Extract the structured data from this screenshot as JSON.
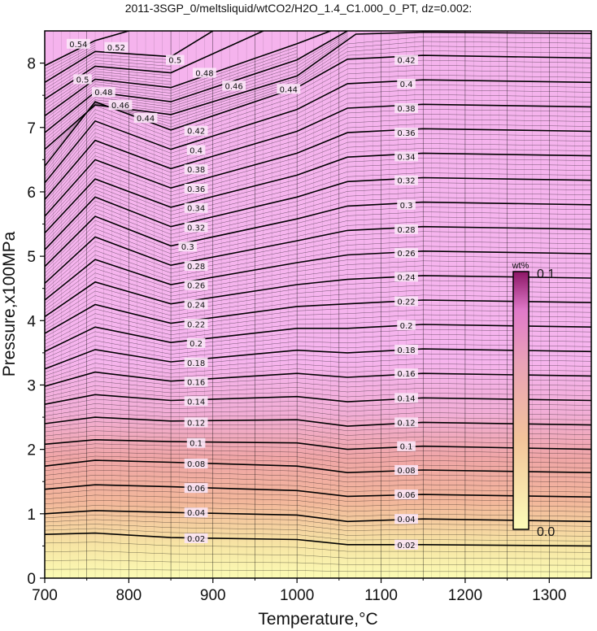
{
  "chart_data": {
    "type": "heatmap",
    "title": "2011-3SGP_0/meltsliquid/wtCO2/H2O_1.4_C1.000_0_PT, dz=0.002:",
    "xlabel": "Temperature,°C",
    "ylabel": "Pressure,x100MPa",
    "xlim": [
      700,
      1350
    ],
    "ylim": [
      0,
      8.5
    ],
    "xticks": [
      "700",
      "800",
      "900",
      "1000",
      "1100",
      "1200",
      "1300"
    ],
    "yticks": [
      "0",
      "1",
      "2",
      "3",
      "4",
      "5",
      "6",
      "7",
      "8"
    ],
    "grid": true,
    "colorbar": {
      "unit": "wt%",
      "min_label": "0.0",
      "max_label": "0.1",
      "min": 0.0,
      "max": 0.1,
      "placement": "right-inside"
    },
    "colors": {
      "low": "#fbfbb4",
      "mid": "#f2a39a",
      "high": "#f6b4ee",
      "top": "#8c1666"
    },
    "contour_levels": [
      "0.02",
      "0.04",
      "0.06",
      "0.08",
      "0.1",
      "0.12",
      "0.14",
      "0.16",
      "0.18",
      "0.2",
      "0.22",
      "0.24",
      "0.26",
      "0.28",
      "0.3",
      "0.32",
      "0.34",
      "0.36",
      "0.38",
      "0.4",
      "0.42",
      "0.44",
      "0.46",
      "0.48",
      "0.5",
      "0.52",
      "0.54"
    ],
    "contours": [
      {
        "level": 0.02,
        "labels": [
          [
            880,
            0.62
          ],
          [
            1130,
            0.52
          ]
        ],
        "points": [
          [
            700,
            0.68
          ],
          [
            760,
            0.7
          ],
          [
            850,
            0.63
          ],
          [
            1000,
            0.6
          ],
          [
            1060,
            0.52
          ],
          [
            1150,
            0.52
          ],
          [
            1350,
            0.5
          ]
        ]
      },
      {
        "level": 0.04,
        "labels": [
          [
            880,
            1.02
          ],
          [
            1130,
            0.92
          ]
        ],
        "points": [
          [
            700,
            1.0
          ],
          [
            760,
            1.05
          ],
          [
            850,
            1.02
          ],
          [
            1000,
            0.98
          ],
          [
            1060,
            0.88
          ],
          [
            1150,
            0.92
          ],
          [
            1350,
            0.88
          ]
        ]
      },
      {
        "level": 0.06,
        "labels": [
          [
            880,
            1.4
          ],
          [
            1130,
            1.3
          ]
        ],
        "points": [
          [
            700,
            1.38
          ],
          [
            760,
            1.45
          ],
          [
            850,
            1.42
          ],
          [
            1000,
            1.36
          ],
          [
            1060,
            1.27
          ],
          [
            1150,
            1.3
          ],
          [
            1350,
            1.26
          ]
        ]
      },
      {
        "level": 0.08,
        "labels": [
          [
            880,
            1.78
          ],
          [
            1130,
            1.68
          ]
        ],
        "points": [
          [
            700,
            1.74
          ],
          [
            760,
            1.83
          ],
          [
            850,
            1.8
          ],
          [
            1000,
            1.74
          ],
          [
            1060,
            1.64
          ],
          [
            1150,
            1.68
          ],
          [
            1350,
            1.64
          ]
        ]
      },
      {
        "level": 0.1,
        "labels": [
          [
            880,
            2.1
          ],
          [
            1130,
            2.05
          ]
        ],
        "points": [
          [
            700,
            2.08
          ],
          [
            760,
            2.15
          ],
          [
            850,
            2.12
          ],
          [
            1000,
            2.1
          ],
          [
            1060,
            2.0
          ],
          [
            1150,
            2.05
          ],
          [
            1350,
            2.0
          ]
        ]
      },
      {
        "level": 0.12,
        "labels": [
          [
            880,
            2.42
          ],
          [
            1130,
            2.42
          ]
        ],
        "points": [
          [
            700,
            2.4
          ],
          [
            760,
            2.5
          ],
          [
            850,
            2.44
          ],
          [
            1000,
            2.46
          ],
          [
            1060,
            2.36
          ],
          [
            1150,
            2.42
          ],
          [
            1350,
            2.38
          ]
        ]
      },
      {
        "level": 0.14,
        "labels": [
          [
            880,
            2.75
          ],
          [
            1130,
            2.8
          ]
        ],
        "points": [
          [
            700,
            2.7
          ],
          [
            760,
            2.85
          ],
          [
            850,
            2.76
          ],
          [
            1000,
            2.82
          ],
          [
            1060,
            2.74
          ],
          [
            1150,
            2.8
          ],
          [
            1350,
            2.76
          ]
        ]
      },
      {
        "level": 0.16,
        "labels": [
          [
            880,
            3.05
          ],
          [
            1130,
            3.18
          ]
        ],
        "points": [
          [
            700,
            2.98
          ],
          [
            760,
            3.2
          ],
          [
            850,
            3.06
          ],
          [
            1000,
            3.18
          ],
          [
            1060,
            3.12
          ],
          [
            1150,
            3.18
          ],
          [
            1350,
            3.14
          ]
        ]
      },
      {
        "level": 0.18,
        "labels": [
          [
            880,
            3.35
          ],
          [
            1130,
            3.55
          ]
        ],
        "points": [
          [
            700,
            3.25
          ],
          [
            760,
            3.55
          ],
          [
            850,
            3.36
          ],
          [
            1000,
            3.54
          ],
          [
            1060,
            3.5
          ],
          [
            1150,
            3.56
          ],
          [
            1350,
            3.52
          ]
        ]
      },
      {
        "level": 0.2,
        "labels": [
          [
            880,
            3.65
          ],
          [
            1130,
            3.93
          ]
        ],
        "points": [
          [
            700,
            3.52
          ],
          [
            760,
            3.9
          ],
          [
            850,
            3.66
          ],
          [
            1000,
            3.88
          ],
          [
            1060,
            3.88
          ],
          [
            1150,
            3.94
          ],
          [
            1350,
            3.9
          ]
        ]
      },
      {
        "level": 0.22,
        "labels": [
          [
            880,
            3.95
          ],
          [
            1130,
            4.3
          ]
        ],
        "points": [
          [
            700,
            3.8
          ],
          [
            760,
            4.25
          ],
          [
            850,
            3.96
          ],
          [
            1000,
            4.22
          ],
          [
            1060,
            4.26
          ],
          [
            1150,
            4.32
          ],
          [
            1350,
            4.28
          ]
        ]
      },
      {
        "level": 0.24,
        "labels": [
          [
            880,
            4.25
          ],
          [
            1130,
            4.68
          ]
        ],
        "points": [
          [
            700,
            4.06
          ],
          [
            760,
            4.6
          ],
          [
            850,
            4.26
          ],
          [
            1000,
            4.56
          ],
          [
            1060,
            4.64
          ],
          [
            1150,
            4.7
          ],
          [
            1350,
            4.66
          ]
        ]
      },
      {
        "level": 0.26,
        "labels": [
          [
            880,
            4.55
          ],
          [
            1130,
            5.05
          ]
        ],
        "points": [
          [
            700,
            4.32
          ],
          [
            760,
            4.95
          ],
          [
            850,
            4.56
          ],
          [
            1000,
            4.9
          ],
          [
            1060,
            5.02
          ],
          [
            1150,
            5.08
          ],
          [
            1350,
            5.04
          ]
        ]
      },
      {
        "level": 0.28,
        "labels": [
          [
            880,
            4.85
          ],
          [
            1130,
            5.42
          ]
        ],
        "points": [
          [
            700,
            4.58
          ],
          [
            760,
            5.3
          ],
          [
            850,
            4.86
          ],
          [
            1000,
            5.24
          ],
          [
            1060,
            5.4
          ],
          [
            1150,
            5.46
          ],
          [
            1350,
            5.42
          ]
        ]
      },
      {
        "level": 0.3,
        "labels": [
          [
            870,
            5.15
          ],
          [
            1130,
            5.8
          ]
        ],
        "points": [
          [
            700,
            4.84
          ],
          [
            760,
            5.62
          ],
          [
            850,
            5.16
          ],
          [
            1000,
            5.58
          ],
          [
            1060,
            5.78
          ],
          [
            1150,
            5.84
          ],
          [
            1350,
            5.8
          ]
        ]
      },
      {
        "level": 0.32,
        "labels": [
          [
            880,
            5.45
          ],
          [
            1130,
            6.18
          ]
        ],
        "points": [
          [
            700,
            5.1
          ],
          [
            760,
            5.92
          ],
          [
            850,
            5.46
          ],
          [
            1000,
            5.92
          ],
          [
            1060,
            6.16
          ],
          [
            1150,
            6.22
          ],
          [
            1350,
            6.18
          ]
        ]
      },
      {
        "level": 0.34,
        "labels": [
          [
            880,
            5.75
          ],
          [
            1130,
            6.55
          ]
        ],
        "points": [
          [
            700,
            5.36
          ],
          [
            760,
            6.2
          ],
          [
            850,
            5.76
          ],
          [
            1000,
            6.26
          ],
          [
            1060,
            6.54
          ],
          [
            1150,
            6.6
          ],
          [
            1350,
            6.56
          ]
        ]
      },
      {
        "level": 0.36,
        "labels": [
          [
            880,
            6.05
          ],
          [
            1130,
            6.92
          ]
        ],
        "points": [
          [
            700,
            5.62
          ],
          [
            760,
            6.5
          ],
          [
            850,
            6.06
          ],
          [
            1000,
            6.6
          ],
          [
            1060,
            6.92
          ],
          [
            1150,
            6.98
          ],
          [
            1350,
            6.94
          ]
        ]
      },
      {
        "level": 0.38,
        "labels": [
          [
            880,
            6.35
          ],
          [
            1130,
            7.3
          ]
        ],
        "points": [
          [
            700,
            5.88
          ],
          [
            760,
            6.8
          ],
          [
            850,
            6.36
          ],
          [
            1000,
            6.94
          ],
          [
            1060,
            7.3
          ],
          [
            1150,
            7.36
          ],
          [
            1350,
            7.32
          ]
        ]
      },
      {
        "level": 0.4,
        "labels": [
          [
            880,
            6.65
          ],
          [
            1130,
            7.68
          ]
        ],
        "points": [
          [
            700,
            6.14
          ],
          [
            760,
            7.1
          ],
          [
            850,
            6.66
          ],
          [
            1000,
            7.28
          ],
          [
            1060,
            7.68
          ],
          [
            1150,
            7.74
          ],
          [
            1350,
            7.7
          ]
        ]
      },
      {
        "level": 0.42,
        "labels": [
          [
            880,
            6.95
          ],
          [
            1130,
            8.05
          ]
        ],
        "points": [
          [
            700,
            6.4
          ],
          [
            760,
            7.4
          ],
          [
            850,
            6.96
          ],
          [
            1000,
            7.62
          ],
          [
            1060,
            8.06
          ],
          [
            1150,
            8.12
          ],
          [
            1350,
            8.08
          ]
        ]
      },
      {
        "level": 0.44,
        "labels": [
          [
            820,
            7.15
          ],
          [
            990,
            7.6
          ]
        ],
        "points": [
          [
            700,
            6.66
          ],
          [
            760,
            7.35
          ],
          [
            850,
            7.2
          ],
          [
            1000,
            7.8
          ],
          [
            1070,
            8.45
          ],
          [
            1150,
            8.48
          ],
          [
            1350,
            8.46
          ]
        ]
      },
      {
        "level": 0.46,
        "labels": [
          [
            790,
            7.35
          ],
          [
            925,
            7.65
          ]
        ],
        "points": [
          [
            700,
            6.92
          ],
          [
            760,
            7.55
          ],
          [
            850,
            7.4
          ],
          [
            1000,
            8.05
          ],
          [
            1060,
            8.5
          ]
        ]
      },
      {
        "level": 0.48,
        "labels": [
          [
            770,
            7.55
          ],
          [
            890,
            7.85
          ]
        ],
        "points": [
          [
            700,
            7.18
          ],
          [
            760,
            7.75
          ],
          [
            850,
            7.62
          ],
          [
            1000,
            8.3
          ],
          [
            1040,
            8.5
          ]
        ]
      },
      {
        "level": 0.5,
        "labels": [
          [
            745,
            7.75
          ],
          [
            855,
            8.05
          ]
        ],
        "points": [
          [
            700,
            7.44
          ],
          [
            760,
            7.95
          ],
          [
            850,
            7.85
          ],
          [
            960,
            8.5
          ]
        ]
      },
      {
        "level": 0.52,
        "labels": [
          [
            785,
            8.25
          ]
        ],
        "points": [
          [
            700,
            7.7
          ],
          [
            760,
            8.18
          ],
          [
            850,
            8.1
          ],
          [
            900,
            8.5
          ]
        ]
      },
      {
        "level": 0.54,
        "labels": [
          [
            740,
            8.3
          ]
        ],
        "points": [
          [
            700,
            7.96
          ],
          [
            760,
            8.35
          ],
          [
            800,
            8.5
          ]
        ]
      }
    ]
  }
}
